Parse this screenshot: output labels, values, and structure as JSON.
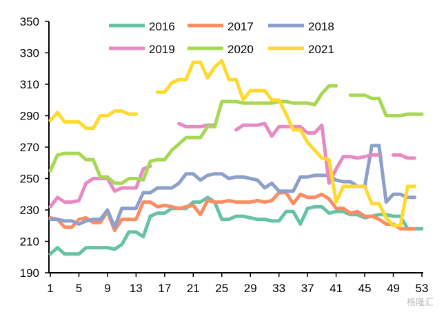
{
  "chart_data": {
    "type": "line",
    "title": "",
    "xlabel": "",
    "ylabel": "",
    "xlim": [
      1,
      53
    ],
    "ylim": [
      190,
      350
    ],
    "xticks": [
      1,
      5,
      9,
      13,
      17,
      21,
      25,
      29,
      33,
      37,
      41,
      45,
      49,
      53
    ],
    "yticks": [
      190,
      210,
      230,
      250,
      270,
      290,
      310,
      330,
      350
    ],
    "legend_position": "top",
    "series": [
      {
        "name": "2016",
        "color": "#66c2a5",
        "values": [
          202,
          206,
          202,
          202,
          202,
          206,
          206,
          206,
          206,
          205,
          208,
          216,
          216,
          213,
          226,
          228,
          228,
          231,
          231,
          231,
          235,
          235,
          238,
          235,
          224,
          224,
          226,
          226,
          225,
          224,
          224,
          223,
          223,
          229,
          229,
          221,
          231,
          232,
          232,
          228,
          229,
          229,
          227,
          227,
          225,
          226,
          227,
          227,
          226,
          226,
          218,
          218,
          218
        ]
      },
      {
        "name": "2017",
        "color": "#fc8d62",
        "values": [
          225,
          224,
          219,
          219,
          224,
          225,
          222,
          222,
          229,
          217,
          224,
          224,
          224,
          235,
          235,
          232,
          233,
          232,
          231,
          232,
          233,
          227,
          236,
          235,
          235,
          236,
          235,
          235,
          235,
          236,
          235,
          236,
          241,
          241,
          234,
          240,
          238,
          238,
          240,
          237,
          231,
          231,
          228,
          229,
          226,
          226,
          224,
          221,
          221,
          218,
          218,
          218
        ]
      },
      {
        "name": "2018",
        "color": "#8da0cb",
        "values": [
          224,
          224,
          223,
          223,
          221,
          223,
          224,
          224,
          230,
          219,
          231,
          231,
          231,
          241,
          241,
          244,
          244,
          244,
          247,
          253,
          253,
          249,
          252,
          253,
          253,
          250,
          251,
          251,
          250,
          249,
          244,
          247,
          242,
          242,
          242,
          251,
          251,
          252,
          252,
          252,
          249,
          248,
          248,
          245,
          245,
          271,
          271,
          235,
          240,
          240,
          238,
          238
        ]
      },
      {
        "name": "2019",
        "color": "#e78ac3",
        "values": [
          232,
          238,
          235,
          235,
          236,
          247,
          250,
          250,
          250,
          242,
          244,
          244,
          244,
          256,
          258,
          null,
          null,
          null,
          285,
          283,
          283,
          283,
          284,
          284,
          null,
          null,
          281,
          284,
          284,
          284,
          285,
          277,
          283,
          283,
          283,
          283,
          279,
          279,
          284,
          247,
          256,
          264,
          264,
          263,
          264,
          265,
          265,
          null,
          265,
          265,
          263,
          263
        ]
      },
      {
        "name": "2020",
        "color": "#a6d854",
        "values": [
          255,
          265,
          266,
          266,
          266,
          262,
          262,
          251,
          251,
          247,
          247,
          250,
          250,
          249,
          261,
          262,
          262,
          268,
          272,
          276,
          276,
          276,
          283,
          283,
          299,
          299,
          299,
          298,
          298,
          298,
          298,
          298,
          299,
          299,
          298,
          298,
          298,
          297,
          304,
          309,
          309,
          null,
          303,
          303,
          303,
          301,
          301,
          290,
          290,
          290,
          291,
          291,
          291
        ]
      },
      {
        "name": "2021",
        "color": "#ffd92f",
        "values": [
          287,
          292,
          286,
          286,
          286,
          282,
          282,
          290,
          290,
          293,
          293,
          291,
          291,
          null,
          null,
          305,
          305,
          311,
          313,
          313,
          324,
          324,
          314,
          321,
          325,
          313,
          313,
          300,
          306,
          306,
          306,
          300,
          300,
          291,
          281,
          281,
          273,
          268,
          263,
          262,
          235,
          245,
          245,
          245,
          245,
          234,
          234,
          225,
          220,
          220,
          245,
          245
        ]
      }
    ]
  },
  "watermark": "格隆汇"
}
